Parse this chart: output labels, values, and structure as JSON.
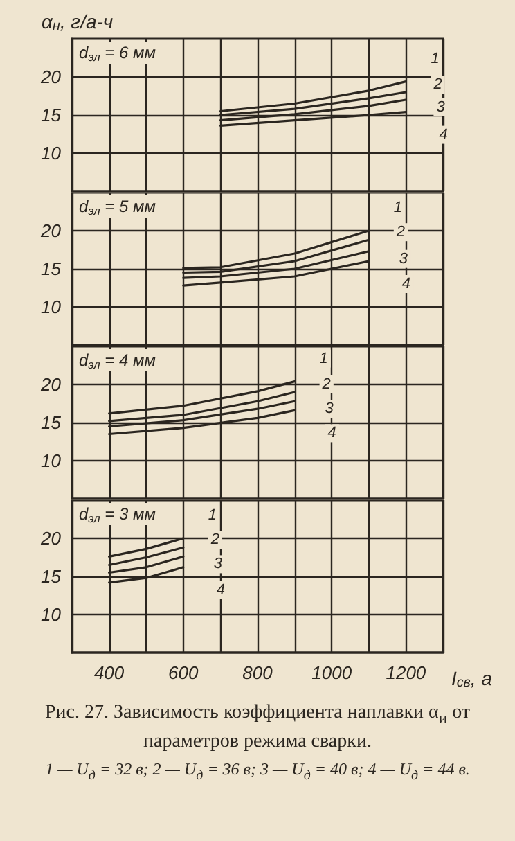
{
  "chart_data": [
    {
      "type": "line",
      "ylabel": "α$_{н}$, г/а-ч",
      "annotations": [
        "d$_{эл}$ = 6 мм"
      ],
      "x": [
        700,
        900,
        1100,
        1200
      ],
      "series": [
        {
          "name": "1",
          "color": "#2b2620",
          "values": [
            15.5,
            16.5,
            18.2,
            19.4
          ]
        },
        {
          "name": "2",
          "color": "#2b2620",
          "values": [
            15.0,
            15.8,
            17.2,
            18.0
          ]
        },
        {
          "name": "3",
          "color": "#2b2620",
          "values": [
            14.3,
            15.1,
            16.2,
            17.0
          ]
        },
        {
          "name": "4",
          "color": "#2b2620",
          "values": [
            13.6,
            14.3,
            15.0,
            15.4
          ]
        }
      ],
      "xlim": [
        300,
        1300
      ],
      "xticks": [
        {
          "value": 300,
          "label": null
        },
        {
          "value": 400,
          "label": null
        },
        {
          "value": 500,
          "label": null
        },
        {
          "value": 600,
          "label": null
        },
        {
          "value": 700,
          "label": null
        },
        {
          "value": 800,
          "label": null
        },
        {
          "value": 900,
          "label": null
        },
        {
          "value": 1000,
          "label": null
        },
        {
          "value": 1100,
          "label": null
        },
        {
          "value": 1200,
          "label": null
        },
        {
          "value": 1300,
          "label": null
        }
      ],
      "ylim": [
        5,
        25
      ],
      "yticks": [
        10,
        15,
        20
      ],
      "grid": true,
      "marker": "none",
      "tick_labels": "y"
    },
    {
      "type": "line",
      "annotations": [
        "d$_{эл}$ = 5 мм"
      ],
      "x": [
        600,
        700,
        900,
        1100
      ],
      "series": [
        {
          "name": "1",
          "color": "#2b2620",
          "values": [
            15.1,
            15.2,
            17.0,
            20.0
          ]
        },
        {
          "name": "2",
          "color": "#2b2620",
          "values": [
            14.5,
            14.6,
            16.0,
            18.8
          ]
        },
        {
          "name": "3",
          "color": "#2b2620",
          "values": [
            13.8,
            14.0,
            15.0,
            17.3
          ]
        },
        {
          "name": "4",
          "color": "#2b2620",
          "values": [
            12.8,
            13.2,
            14.0,
            16.0
          ]
        }
      ],
      "xlim": [
        300,
        1300
      ],
      "xticks": [
        {
          "value": 300,
          "label": null
        },
        {
          "value": 400,
          "label": null
        },
        {
          "value": 500,
          "label": null
        },
        {
          "value": 600,
          "label": null
        },
        {
          "value": 700,
          "label": null
        },
        {
          "value": 800,
          "label": null
        },
        {
          "value": 900,
          "label": null
        },
        {
          "value": 1000,
          "label": null
        },
        {
          "value": 1100,
          "label": null
        },
        {
          "value": 1200,
          "label": null
        },
        {
          "value": 1300,
          "label": null
        }
      ],
      "ylim": [
        5,
        25
      ],
      "yticks": [
        10,
        15,
        20
      ],
      "grid": true,
      "marker": "none",
      "tick_labels": "y"
    },
    {
      "type": "line",
      "annotations": [
        "d$_{эл}$ = 4 мм"
      ],
      "x": [
        400,
        600,
        800,
        900
      ],
      "series": [
        {
          "name": "1",
          "color": "#2b2620",
          "values": [
            16.2,
            17.2,
            19.1,
            20.4
          ]
        },
        {
          "name": "2",
          "color": "#2b2620",
          "values": [
            15.2,
            16.0,
            17.8,
            19.0
          ]
        },
        {
          "name": "3",
          "color": "#2b2620",
          "values": [
            14.5,
            15.3,
            16.8,
            17.8
          ]
        },
        {
          "name": "4",
          "color": "#2b2620",
          "values": [
            13.5,
            14.3,
            15.6,
            16.6
          ]
        }
      ],
      "xlim": [
        300,
        1300
      ],
      "xticks": [
        {
          "value": 300,
          "label": null
        },
        {
          "value": 400,
          "label": null
        },
        {
          "value": 500,
          "label": null
        },
        {
          "value": 600,
          "label": null
        },
        {
          "value": 700,
          "label": null
        },
        {
          "value": 800,
          "label": null
        },
        {
          "value": 900,
          "label": null
        },
        {
          "value": 1000,
          "label": null
        },
        {
          "value": 1100,
          "label": null
        },
        {
          "value": 1200,
          "label": null
        },
        {
          "value": 1300,
          "label": null
        }
      ],
      "ylim": [
        5,
        25
      ],
      "yticks": [
        10,
        15,
        20
      ],
      "grid": true,
      "marker": "none",
      "tick_labels": "y"
    },
    {
      "type": "line",
      "xlabel": "I$_{св}$, а",
      "annotations": [
        "d$_{эл}$ = 3 мм",
        "Рис. 27. Зависимость коэффициента наплавки α$_{и}$ от параметров режима сварки.",
        "1 — U$_{д}$ = 32 в; 2 — U$_{д}$ = 36 в; 3 — U$_{д}$ = 40 в; 4 — U$_{д}$ = 44 в."
      ],
      "x": [
        400,
        500,
        600
      ],
      "series": [
        {
          "name": "1",
          "color": "#2b2620",
          "values": [
            17.6,
            18.6,
            20.0
          ]
        },
        {
          "name": "2",
          "color": "#2b2620",
          "values": [
            16.5,
            17.5,
            18.8
          ]
        },
        {
          "name": "3",
          "color": "#2b2620",
          "values": [
            15.5,
            16.2,
            17.6
          ]
        },
        {
          "name": "4",
          "color": "#2b2620",
          "values": [
            14.2,
            14.8,
            16.2
          ]
        }
      ],
      "xlim": [
        300,
        1300
      ],
      "xticks": [
        {
          "value": 300,
          "label": null
        },
        {
          "value": 400,
          "label": "400"
        },
        {
          "value": 500,
          "label": null
        },
        {
          "value": 600,
          "label": "600"
        },
        {
          "value": 700,
          "label": null
        },
        {
          "value": 800,
          "label": "800"
        },
        {
          "value": 900,
          "label": null
        },
        {
          "value": 1000,
          "label": "1000"
        },
        {
          "value": 1100,
          "label": null
        },
        {
          "value": 1200,
          "label": "1200"
        },
        {
          "value": 1300,
          "label": null
        }
      ],
      "ylim": [
        5,
        25
      ],
      "yticks": [
        10,
        15,
        20
      ],
      "grid": true,
      "marker": "none"
    }
  ]
}
